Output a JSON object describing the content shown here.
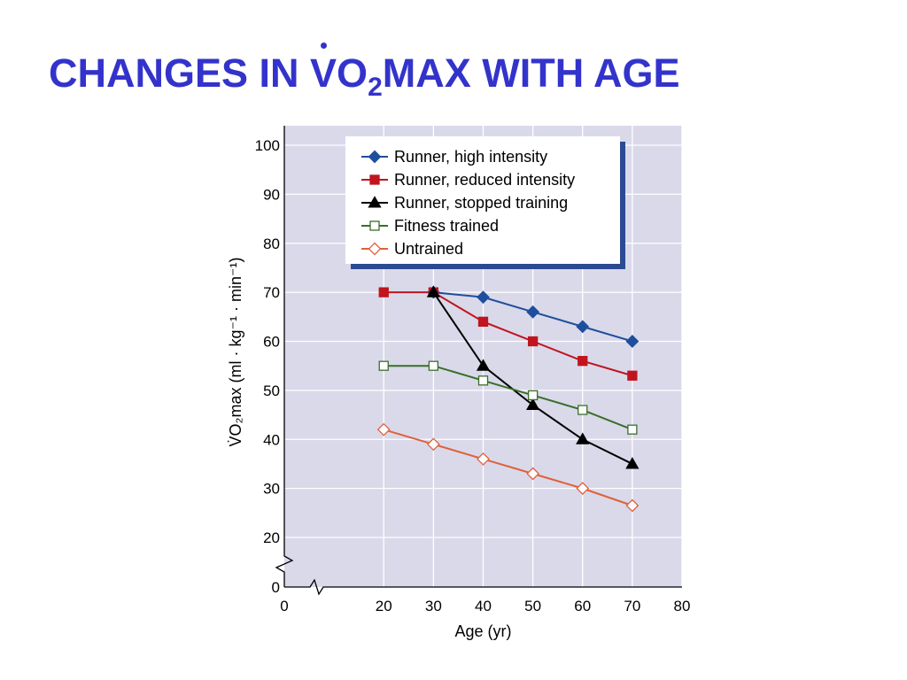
{
  "title": {
    "prefix": "CHANGES IN ",
    "v": "V",
    "o": "O",
    "sub": "2",
    "suffix": "MAX WITH AGE"
  },
  "chart_data": {
    "type": "line",
    "xlabel": "Age (yr)",
    "ylabel": "V̇O₂max (ml · kg⁻¹ · min⁻¹)",
    "x_ticks": [
      0,
      20,
      30,
      40,
      50,
      60,
      70,
      80
    ],
    "y_ticks": [
      0,
      20,
      30,
      40,
      50,
      60,
      70,
      80,
      90,
      100
    ],
    "axis_break": true,
    "xlim": [
      0,
      80
    ],
    "ylim": [
      0,
      100
    ],
    "grid": true,
    "legend_position": "top",
    "colors": {
      "background": "#d9d9ea",
      "grid": "#ffffff"
    },
    "series": [
      {
        "name": "Runner, high intensity",
        "color": "#1f4e9c",
        "marker": "diamond-filled",
        "x": [
          30,
          40,
          50,
          60,
          70
        ],
        "y": [
          70,
          69,
          66,
          63,
          60
        ]
      },
      {
        "name": "Runner, reduced intensity",
        "color": "#c0151e",
        "marker": "square-filled",
        "x": [
          20,
          30,
          40,
          50,
          60,
          70
        ],
        "y": [
          70,
          70,
          64,
          60,
          56,
          53
        ]
      },
      {
        "name": "Runner, stopped training",
        "color": "#000000",
        "marker": "triangle-filled",
        "x": [
          30,
          40,
          50,
          60,
          70
        ],
        "y": [
          70,
          55,
          47,
          40,
          35
        ]
      },
      {
        "name": "Fitness trained",
        "color": "#3a6e28",
        "marker": "square-open",
        "x": [
          20,
          30,
          40,
          50,
          60,
          70
        ],
        "y": [
          55,
          55,
          52,
          49,
          46,
          42
        ]
      },
      {
        "name": "Untrained",
        "color": "#e0603a",
        "marker": "diamond-open",
        "x": [
          20,
          30,
          40,
          50,
          60,
          70
        ],
        "y": [
          42,
          39,
          36,
          33,
          30,
          26.5
        ]
      }
    ]
  }
}
